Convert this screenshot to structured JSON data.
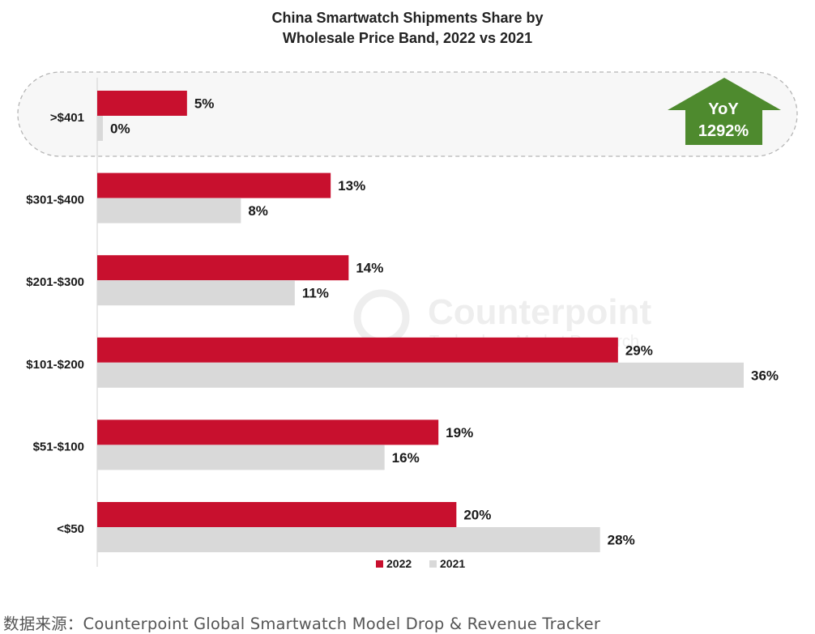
{
  "chart_data": {
    "type": "bar",
    "orientation": "horizontal",
    "title_lines": [
      "China Smartwatch Shipments Share by",
      "Wholesale Price Band, 2022 vs 2021"
    ],
    "categories": [
      ">$401",
      "$301-$400",
      "$201-$300",
      "$101-$200",
      "$51-$100",
      "<$50"
    ],
    "series": [
      {
        "name": "2022",
        "color": "#c8102e",
        "values": [
          5,
          13,
          14,
          29,
          19,
          20
        ],
        "labels": [
          "5%",
          "13%",
          "14%",
          "29%",
          "19%",
          "20%"
        ]
      },
      {
        "name": "2021",
        "color": "#d9d9d9",
        "values": [
          0,
          8,
          11,
          36,
          16,
          28
        ],
        "labels": [
          "0%",
          "8%",
          "11%",
          "36%",
          "16%",
          "28%"
        ]
      }
    ],
    "xlim": [
      0,
      36
    ],
    "legend_position": "bottom",
    "annotation": {
      "line1": "YoY",
      "line2": "1292%",
      "color": "#4e8a2e",
      "highlight_category": ">$401"
    },
    "watermark": {
      "brand": "Counterpoint",
      "tagline": "Technology Market Research"
    }
  },
  "source_note": "数据来源：Counterpoint Global Smartwatch Model Drop & Revenue Tracker"
}
